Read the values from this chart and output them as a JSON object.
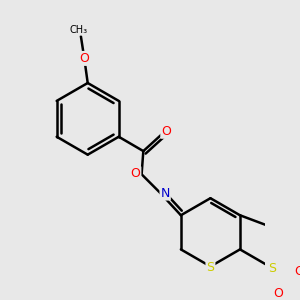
{
  "background_color": "#e8e8e8",
  "bond_color": "#000000",
  "bond_width": 1.8,
  "font_size": 9,
  "fig_width": 3.0,
  "fig_height": 3.0,
  "dpi": 100,
  "atom_colors": {
    "O": "#ff0000",
    "N": "#0000cc",
    "S": "#cccc00",
    "C": "#000000"
  }
}
